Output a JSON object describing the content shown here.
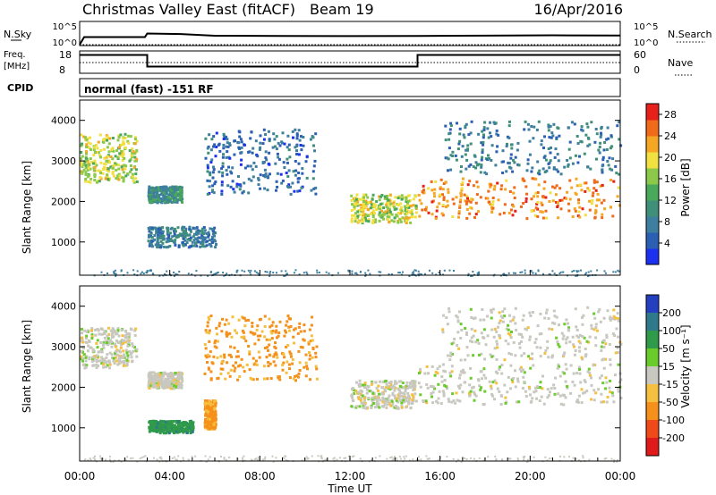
{
  "header": {
    "title": "Christmas Valley East (fitACF)",
    "beam": "Beam 19",
    "date": "16/Apr/2016"
  },
  "panels": {
    "nsky_label": "N.Sky",
    "nsky_ticks": [
      "10^5",
      "10^0"
    ],
    "nsearch_label": "N.Search",
    "nsearch_ticks": [
      "10^5",
      "10^0"
    ],
    "freq_label": "Freq.",
    "freq_unit": "[MHz]",
    "freq_ticks": [
      "18",
      "8"
    ],
    "nave_label": "Nave",
    "nave_ticks": [
      "60",
      "0"
    ],
    "cpid_label": "CPID",
    "cpid_text": "normal (fast) -151 RF"
  },
  "chart_data": [
    {
      "type": "line",
      "name": "noise",
      "title": "",
      "y_scale": "log",
      "series": [
        {
          "name": "N.Sky",
          "x_hours": [
            0,
            0.2,
            2.9,
            3.0,
            4.5,
            6,
            9,
            12,
            15,
            18,
            21,
            24
          ],
          "y": [
            1,
            60,
            60,
            400,
            300,
            120,
            110,
            100,
            110,
            130,
            150,
            140
          ]
        },
        {
          "name": "N.Search",
          "x_hours": [
            0,
            24
          ],
          "y": [
            1,
            1
          ]
        }
      ]
    },
    {
      "type": "line",
      "name": "frequency",
      "title": "",
      "y_range": [
        8,
        18
      ],
      "y2_range": [
        0,
        60
      ],
      "series": [
        {
          "name": "Freq.",
          "x_hours": [
            0,
            3,
            3,
            15,
            15,
            24
          ],
          "y": [
            16.5,
            16.5,
            10.8,
            10.8,
            16.5,
            16.5
          ]
        },
        {
          "name": "Nave",
          "x_hours": [
            0,
            24
          ],
          "y": [
            18,
            18
          ]
        }
      ]
    },
    {
      "type": "heatmap",
      "name": "power",
      "xlabel": "",
      "ylabel": "Slant Range [km]",
      "xlim": [
        0,
        24
      ],
      "ylim": [
        180,
        4500
      ],
      "y_ticks": [
        1000,
        2000,
        3000,
        4000
      ],
      "colorbar": {
        "label": "Power [dB]",
        "ticks": [
          4,
          8,
          12,
          16,
          20,
          24,
          28
        ],
        "range": [
          0,
          30
        ],
        "colors": [
          "#1c30f0",
          "#2b5fb3",
          "#3e7fa0",
          "#3f8f7a",
          "#49a85a",
          "#8cc84a",
          "#f0e040",
          "#f5a623",
          "#f06a1a",
          "#e8201a"
        ]
      },
      "echo_regions": [
        {
          "t": [
            0.0,
            2.5
          ],
          "r": [
            2500,
            3700
          ],
          "power": 18,
          "desc": "early"
        },
        {
          "t": [
            3.0,
            4.5
          ],
          "r": [
            2000,
            2400
          ],
          "power": 10
        },
        {
          "t": [
            3.0,
            6.0
          ],
          "r": [
            900,
            1400
          ],
          "power": 8
        },
        {
          "t": [
            5.5,
            10.5
          ],
          "r": [
            2200,
            3800
          ],
          "power": 6
        },
        {
          "t": [
            12.0,
            14.9
          ],
          "r": [
            1500,
            2200
          ],
          "power": 18
        },
        {
          "t": [
            15.0,
            24.0
          ],
          "r": [
            1600,
            2600
          ],
          "power": 24
        },
        {
          "t": [
            16.0,
            24.0
          ],
          "r": [
            2700,
            4000
          ],
          "power": 8
        }
      ]
    },
    {
      "type": "heatmap",
      "name": "velocity",
      "xlabel": "Time UT",
      "ylabel": "Slant Range [km]",
      "xlim": [
        0,
        24
      ],
      "ylim": [
        180,
        4500
      ],
      "y_ticks": [
        1000,
        2000,
        3000,
        4000
      ],
      "x_ticks": [
        "00:00",
        "04:00",
        "08:00",
        "12:00",
        "16:00",
        "20:00",
        "00:00"
      ],
      "colorbar": {
        "label": "Velocity [m s⁻¹]",
        "ticks": [
          "200",
          "100",
          "50",
          "15",
          "-15",
          "-50",
          "-100",
          "-200"
        ],
        "colors": [
          "#2440c0",
          "#2f7a8a",
          "#2e9a4a",
          "#6acc2a",
          "#c8c8c0",
          "#f5c040",
          "#f5901a",
          "#f04a1a",
          "#e01a1a"
        ]
      },
      "echo_regions": [
        {
          "t": [
            0.0,
            2.5
          ],
          "r": [
            2500,
            3500
          ],
          "velocity": 0
        },
        {
          "t": [
            3.0,
            4.5
          ],
          "r": [
            2000,
            2400
          ],
          "velocity": 0
        },
        {
          "t": [
            3.0,
            5.0
          ],
          "r": [
            900,
            1200
          ],
          "velocity": 60
        },
        {
          "t": [
            5.5,
            6.0
          ],
          "r": [
            1000,
            1700
          ],
          "velocity": -40
        },
        {
          "t": [
            5.5,
            10.5
          ],
          "r": [
            2200,
            3800
          ],
          "velocity": -40
        },
        {
          "t": [
            12.0,
            14.9
          ],
          "r": [
            1500,
            2200
          ],
          "velocity": 0
        },
        {
          "t": [
            15.0,
            24.0
          ],
          "r": [
            1600,
            2600
          ],
          "velocity": 0
        },
        {
          "t": [
            16.0,
            24.0
          ],
          "r": [
            2700,
            4000
          ],
          "velocity": 0
        }
      ]
    }
  ]
}
